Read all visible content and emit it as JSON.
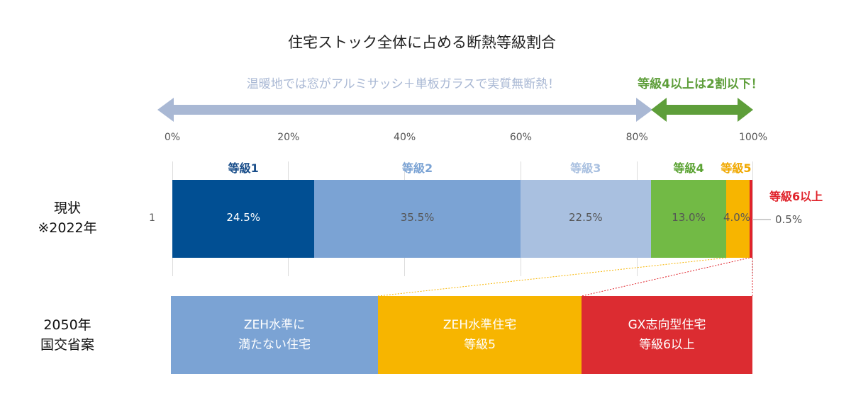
{
  "title": "住宅ストック全体に占める断熱等級割合",
  "arrows": {
    "left_text": "温暖地では窓がアルミサッシ＋単板ガラスで実質無断熱！",
    "right_text": "等級4以上は2割以下！",
    "left_color": "#A9B8D4",
    "right_color": "#5E9E3A"
  },
  "colors": {
    "grade1": "#014F93",
    "grade2": "#7BA3D4",
    "grade3": "#A9C0E0",
    "grade4": "#72BA45",
    "grade5": "#F7B500",
    "grade6": "#E0232B"
  },
  "rows": {
    "current_line1": "現状",
    "current_line2": "※2022年",
    "series_index": "1",
    "future_line1": "2050年",
    "future_line2": "国交省案"
  },
  "chart_data": {
    "type": "bar",
    "orientation": "horizontal",
    "stacked": true,
    "xlim": [
      0,
      100
    ],
    "x_ticks": [
      "0%",
      "20%",
      "40%",
      "60%",
      "80%",
      "100%"
    ],
    "grid": true,
    "categories": [
      "1"
    ],
    "series": [
      {
        "name": "等級1",
        "values": [
          24.5
        ],
        "label": "24.5%"
      },
      {
        "name": "等級2",
        "values": [
          35.5
        ],
        "label": "35.5%"
      },
      {
        "name": "等級3",
        "values": [
          22.5
        ],
        "label": "22.5%"
      },
      {
        "name": "等級4",
        "values": [
          13.0
        ],
        "label": "13.0%"
      },
      {
        "name": "等級5",
        "values": [
          4.0
        ],
        "label": "4.0%"
      },
      {
        "name": "等級6以上",
        "values": [
          0.5
        ],
        "label": "0.5%"
      }
    ]
  },
  "future_plan": [
    {
      "line1": "ZEH水準に",
      "line2": "満たない住宅",
      "color": "#7BA3D4"
    },
    {
      "line1": "ZEH水準住宅",
      "line2": "等級5",
      "color": "#F7B500"
    },
    {
      "line1": "GX志向型住宅",
      "line2": "等級6以上",
      "color": "#DC2C31"
    }
  ]
}
